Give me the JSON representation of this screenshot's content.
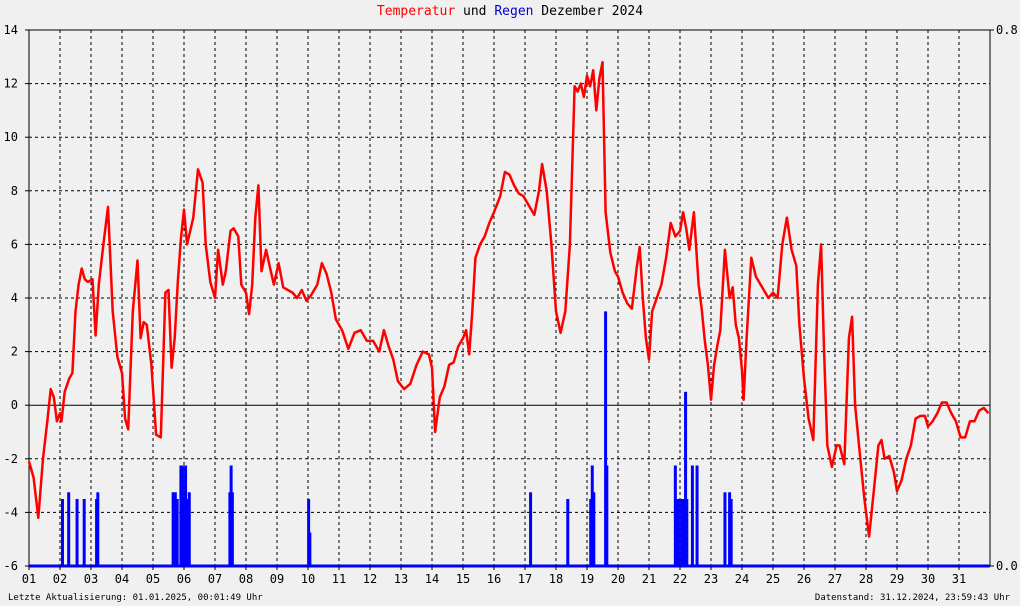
{
  "chart_data": {
    "type": "line",
    "title_parts": [
      "Temperatur",
      " und ",
      "Regen",
      " Dezember 2024"
    ],
    "x_tick_labels": [
      "01",
      "02",
      "03",
      "04",
      "05",
      "06",
      "07",
      "08",
      "09",
      "10",
      "11",
      "12",
      "13",
      "14",
      "15",
      "16",
      "17",
      "18",
      "19",
      "20",
      "21",
      "22",
      "23",
      "24",
      "25",
      "26",
      "27",
      "28",
      "29",
      "30",
      "31"
    ],
    "ylim": [
      -6,
      14
    ],
    "y_ticks": [
      -6,
      -4,
      -2,
      0,
      2,
      4,
      6,
      8,
      10,
      12,
      14
    ],
    "y_tick_labels": [
      "-6",
      "-4",
      "-2",
      "0",
      "2",
      "4",
      "6",
      "8",
      "10",
      "12",
      "14"
    ],
    "y2lim": [
      0,
      0.8
    ],
    "y2_tick_labels": [
      "0.0",
      "0.8"
    ],
    "grid": true,
    "colors": {
      "temperature": "#ff0000",
      "rain": "#0000ff",
      "background": "#f0f0f0"
    },
    "series": [
      {
        "name": "Temperatur",
        "axis": "left",
        "points": [
          [
            1.0,
            -2.1
          ],
          [
            1.15,
            -2.7
          ],
          [
            1.3,
            -4.2
          ],
          [
            1.45,
            -2.0
          ],
          [
            1.6,
            -0.5
          ],
          [
            1.7,
            0.6
          ],
          [
            1.8,
            0.3
          ],
          [
            1.9,
            -0.6
          ],
          [
            2.0,
            -0.3
          ],
          [
            2.05,
            -0.6
          ],
          [
            2.15,
            0.5
          ],
          [
            2.3,
            1.0
          ],
          [
            2.4,
            1.2
          ],
          [
            2.5,
            3.5
          ],
          [
            2.6,
            4.5
          ],
          [
            2.7,
            5.1
          ],
          [
            2.8,
            4.7
          ],
          [
            2.9,
            4.6
          ],
          [
            3.05,
            4.7
          ],
          [
            3.15,
            2.6
          ],
          [
            3.25,
            4.5
          ],
          [
            3.4,
            6.0
          ],
          [
            3.55,
            7.4
          ],
          [
            3.7,
            3.5
          ],
          [
            3.85,
            1.8
          ],
          [
            4.0,
            1.2
          ],
          [
            4.1,
            -0.5
          ],
          [
            4.2,
            -0.9
          ],
          [
            4.35,
            3.5
          ],
          [
            4.5,
            5.4
          ],
          [
            4.6,
            2.5
          ],
          [
            4.7,
            3.1
          ],
          [
            4.8,
            3.0
          ],
          [
            4.95,
            1.5
          ],
          [
            5.1,
            -1.1
          ],
          [
            5.25,
            -1.2
          ],
          [
            5.4,
            4.2
          ],
          [
            5.5,
            4.3
          ],
          [
            5.6,
            1.4
          ],
          [
            5.7,
            2.5
          ],
          [
            5.8,
            4.6
          ],
          [
            5.9,
            6.2
          ],
          [
            6.0,
            7.3
          ],
          [
            6.1,
            6.0
          ],
          [
            6.3,
            7.0
          ],
          [
            6.45,
            8.8
          ],
          [
            6.6,
            8.3
          ],
          [
            6.7,
            6.0
          ],
          [
            6.85,
            4.6
          ],
          [
            7.0,
            4.0
          ],
          [
            7.1,
            5.8
          ],
          [
            7.25,
            4.5
          ],
          [
            7.35,
            5.0
          ],
          [
            7.5,
            6.5
          ],
          [
            7.6,
            6.6
          ],
          [
            7.75,
            6.3
          ],
          [
            7.85,
            4.5
          ],
          [
            8.0,
            4.2
          ],
          [
            8.1,
            3.4
          ],
          [
            8.2,
            4.5
          ],
          [
            8.3,
            7.0
          ],
          [
            8.4,
            8.2
          ],
          [
            8.5,
            5.0
          ],
          [
            8.65,
            5.8
          ],
          [
            8.8,
            5.0
          ],
          [
            8.9,
            4.5
          ],
          [
            9.05,
            5.3
          ],
          [
            9.2,
            4.4
          ],
          [
            9.35,
            4.3
          ],
          [
            9.5,
            4.2
          ],
          [
            9.65,
            4.0
          ],
          [
            9.8,
            4.3
          ],
          [
            9.95,
            3.9
          ],
          [
            10.1,
            4.1
          ],
          [
            10.3,
            4.5
          ],
          [
            10.45,
            5.3
          ],
          [
            10.6,
            4.9
          ],
          [
            10.75,
            4.2
          ],
          [
            10.9,
            3.2
          ],
          [
            11.1,
            2.8
          ],
          [
            11.3,
            2.1
          ],
          [
            11.5,
            2.7
          ],
          [
            11.7,
            2.8
          ],
          [
            11.9,
            2.4
          ],
          [
            12.1,
            2.4
          ],
          [
            12.3,
            2.0
          ],
          [
            12.45,
            2.8
          ],
          [
            12.6,
            2.2
          ],
          [
            12.75,
            1.7
          ],
          [
            12.9,
            0.9
          ],
          [
            13.1,
            0.6
          ],
          [
            13.3,
            0.8
          ],
          [
            13.5,
            1.5
          ],
          [
            13.7,
            2.0
          ],
          [
            13.9,
            1.9
          ],
          [
            14.0,
            1.4
          ],
          [
            14.1,
            -1.0
          ],
          [
            14.25,
            0.3
          ],
          [
            14.4,
            0.7
          ],
          [
            14.55,
            1.5
          ],
          [
            14.7,
            1.6
          ],
          [
            14.85,
            2.2
          ],
          [
            15.0,
            2.5
          ],
          [
            15.1,
            2.8
          ],
          [
            15.2,
            1.9
          ],
          [
            15.3,
            3.5
          ],
          [
            15.4,
            5.5
          ],
          [
            15.55,
            6.0
          ],
          [
            15.7,
            6.3
          ],
          [
            15.85,
            6.8
          ],
          [
            16.0,
            7.2
          ],
          [
            16.2,
            7.8
          ],
          [
            16.35,
            8.7
          ],
          [
            16.5,
            8.6
          ],
          [
            16.65,
            8.2
          ],
          [
            16.8,
            7.9
          ],
          [
            16.95,
            7.8
          ],
          [
            17.1,
            7.5
          ],
          [
            17.3,
            7.1
          ],
          [
            17.45,
            8.0
          ],
          [
            17.55,
            9.0
          ],
          [
            17.7,
            8.0
          ],
          [
            17.85,
            6.0
          ],
          [
            18.0,
            3.5
          ],
          [
            18.15,
            2.7
          ],
          [
            18.3,
            3.5
          ],
          [
            18.45,
            6.0
          ],
          [
            18.6,
            11.9
          ],
          [
            18.7,
            11.7
          ],
          [
            18.8,
            12.0
          ],
          [
            18.9,
            11.5
          ],
          [
            19.0,
            12.3
          ],
          [
            19.1,
            11.9
          ],
          [
            19.2,
            12.5
          ],
          [
            19.3,
            11.0
          ],
          [
            19.4,
            12.2
          ],
          [
            19.5,
            12.8
          ],
          [
            19.6,
            7.2
          ],
          [
            19.75,
            5.7
          ],
          [
            19.9,
            5.0
          ],
          [
            20.0,
            4.8
          ],
          [
            20.15,
            4.2
          ],
          [
            20.3,
            3.8
          ],
          [
            20.45,
            3.6
          ],
          [
            20.6,
            5.1
          ],
          [
            20.7,
            5.9
          ],
          [
            20.8,
            4.0
          ],
          [
            20.9,
            2.5
          ],
          [
            21.0,
            1.7
          ],
          [
            21.1,
            3.5
          ],
          [
            21.25,
            4.0
          ],
          [
            21.4,
            4.5
          ],
          [
            21.55,
            5.5
          ],
          [
            21.7,
            6.8
          ],
          [
            21.85,
            6.3
          ],
          [
            22.0,
            6.5
          ],
          [
            22.1,
            7.2
          ],
          [
            22.2,
            6.6
          ],
          [
            22.3,
            5.8
          ],
          [
            22.45,
            7.2
          ],
          [
            22.6,
            4.5
          ],
          [
            22.7,
            3.6
          ],
          [
            22.8,
            2.4
          ],
          [
            22.9,
            1.5
          ],
          [
            23.0,
            0.2
          ],
          [
            23.1,
            1.5
          ],
          [
            23.2,
            2.2
          ],
          [
            23.3,
            2.8
          ],
          [
            23.45,
            5.8
          ],
          [
            23.6,
            4.0
          ],
          [
            23.7,
            4.4
          ],
          [
            23.8,
            3.0
          ],
          [
            23.9,
            2.5
          ],
          [
            24.0,
            1.3
          ],
          [
            24.05,
            0.2
          ],
          [
            24.15,
            2.5
          ],
          [
            24.3,
            5.5
          ],
          [
            24.45,
            4.8
          ],
          [
            24.6,
            4.5
          ],
          [
            24.75,
            4.2
          ],
          [
            24.85,
            4.0
          ],
          [
            25.0,
            4.2
          ],
          [
            25.15,
            4.0
          ],
          [
            25.3,
            6.0
          ],
          [
            25.45,
            7.0
          ],
          [
            25.6,
            5.8
          ],
          [
            25.75,
            5.2
          ],
          [
            25.85,
            3.0
          ],
          [
            26.0,
            1.0
          ],
          [
            26.15,
            -0.5
          ],
          [
            26.3,
            -1.3
          ],
          [
            26.45,
            4.5
          ],
          [
            26.55,
            6.0
          ],
          [
            26.65,
            2.0
          ],
          [
            26.75,
            -1.5
          ],
          [
            26.9,
            -2.3
          ],
          [
            27.05,
            -1.5
          ],
          [
            27.15,
            -1.5
          ],
          [
            27.3,
            -2.2
          ],
          [
            27.45,
            2.5
          ],
          [
            27.55,
            3.3
          ],
          [
            27.65,
            0.0
          ],
          [
            27.8,
            -1.8
          ],
          [
            27.95,
            -3.5
          ],
          [
            28.1,
            -4.9
          ],
          [
            28.25,
            -3.2
          ],
          [
            28.4,
            -1.5
          ],
          [
            28.5,
            -1.3
          ],
          [
            28.6,
            -2.0
          ],
          [
            28.75,
            -1.9
          ],
          [
            28.9,
            -2.5
          ],
          [
            29.0,
            -3.2
          ],
          [
            29.15,
            -2.8
          ],
          [
            29.3,
            -2.0
          ],
          [
            29.45,
            -1.5
          ],
          [
            29.6,
            -0.5
          ],
          [
            29.75,
            -0.4
          ],
          [
            29.9,
            -0.4
          ],
          [
            30.0,
            -0.8
          ],
          [
            30.15,
            -0.6
          ],
          [
            30.3,
            -0.3
          ],
          [
            30.45,
            0.1
          ],
          [
            30.6,
            0.1
          ],
          [
            30.75,
            -0.3
          ],
          [
            30.9,
            -0.6
          ],
          [
            31.05,
            -1.2
          ],
          [
            31.2,
            -1.2
          ],
          [
            31.35,
            -0.6
          ],
          [
            31.5,
            -0.6
          ],
          [
            31.65,
            -0.2
          ],
          [
            31.8,
            -0.1
          ],
          [
            31.95,
            -0.3
          ]
        ]
      },
      {
        "name": "Regen",
        "axis": "right",
        "points": [
          [
            2.08,
            0.1
          ],
          [
            2.28,
            0.11
          ],
          [
            2.55,
            0.1
          ],
          [
            2.78,
            0.1
          ],
          [
            3.18,
            0.1
          ],
          [
            3.22,
            0.11
          ],
          [
            5.65,
            0.11
          ],
          [
            5.72,
            0.11
          ],
          [
            5.78,
            0.1
          ],
          [
            5.9,
            0.15
          ],
          [
            5.95,
            0.15
          ],
          [
            6.0,
            0.1
          ],
          [
            6.05,
            0.15
          ],
          [
            6.1,
            0.1
          ],
          [
            6.17,
            0.11
          ],
          [
            7.48,
            0.11
          ],
          [
            7.52,
            0.15
          ],
          [
            7.56,
            0.11
          ],
          [
            10.02,
            0.1
          ],
          [
            10.06,
            0.05
          ],
          [
            17.18,
            0.11
          ],
          [
            18.38,
            0.1
          ],
          [
            19.12,
            0.1
          ],
          [
            19.17,
            0.15
          ],
          [
            19.22,
            0.11
          ],
          [
            19.6,
            0.38
          ],
          [
            19.64,
            0.15
          ],
          [
            21.85,
            0.15
          ],
          [
            21.9,
            0.1
          ],
          [
            21.95,
            0.1
          ],
          [
            22.05,
            0.1
          ],
          [
            22.12,
            0.1
          ],
          [
            22.18,
            0.26
          ],
          [
            22.22,
            0.1
          ],
          [
            22.4,
            0.15
          ],
          [
            22.55,
            0.15
          ],
          [
            23.45,
            0.11
          ],
          [
            23.6,
            0.11
          ],
          [
            23.65,
            0.1
          ]
        ]
      }
    ]
  },
  "footer": {
    "left": "Letzte Aktualisierung: 01.01.2025, 00:01:49 Uhr",
    "right": "Datenstand: 31.12.2024, 23:59:43 Uhr"
  }
}
